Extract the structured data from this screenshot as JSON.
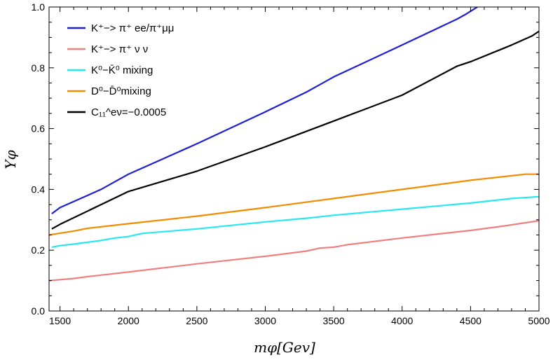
{
  "chart_data": {
    "type": "line",
    "xlabel": "mφ[Gev]",
    "ylabel": "Yφ",
    "xlim": [
      1420,
      5000
    ],
    "ylim": [
      0.0,
      1.0
    ],
    "x_ticks": [
      "1500",
      "2000",
      "2500",
      "3000",
      "3500",
      "4000",
      "4500",
      "5000"
    ],
    "y_ticks": [
      "0.0",
      "0.2",
      "0.4",
      "0.6",
      "0.8",
      "1.0"
    ],
    "grid": false,
    "legend_position": "top-left",
    "series": [
      {
        "name": "K⁺−> π⁺ ee/π⁺μμ",
        "color": "#1f1fd6",
        "x": [
          1440,
          1500,
          1600,
          1700,
          1800,
          1900,
          2000,
          2500,
          3000,
          3300,
          3400,
          3500,
          4000,
          4400,
          4460,
          4550
        ],
        "y": [
          0.32,
          0.34,
          0.36,
          0.38,
          0.4,
          0.425,
          0.45,
          0.55,
          0.655,
          0.72,
          0.745,
          0.77,
          0.875,
          0.96,
          0.975,
          1.0
        ]
      },
      {
        "name": "K⁺−> π⁺ ν ν",
        "color": "#f08080",
        "x": [
          1420,
          1500,
          1600,
          1700,
          1800,
          2000,
          2500,
          3000,
          3300,
          3400,
          3500,
          3600,
          4000,
          4500,
          4750,
          5000
        ],
        "y": [
          0.1,
          0.103,
          0.107,
          0.113,
          0.118,
          0.128,
          0.155,
          0.18,
          0.197,
          0.207,
          0.21,
          0.218,
          0.24,
          0.265,
          0.28,
          0.297
        ]
      },
      {
        "name": "K⁰−K̄⁰ mixing",
        "color": "#26e8f0",
        "x": [
          1440,
          1500,
          1600,
          1700,
          1800,
          1900,
          2000,
          2100,
          2500,
          3000,
          3300,
          3500,
          4000,
          4500,
          4800,
          5000
        ],
        "y": [
          0.21,
          0.215,
          0.22,
          0.226,
          0.232,
          0.24,
          0.245,
          0.255,
          0.27,
          0.293,
          0.305,
          0.315,
          0.335,
          0.355,
          0.37,
          0.376
        ]
      },
      {
        "name": "D⁰−D̄⁰mixing",
        "color": "#f28c00",
        "x": [
          1420,
          1500,
          1600,
          1700,
          2000,
          2500,
          3000,
          3500,
          4000,
          4500,
          4800,
          4900,
          5000
        ],
        "y": [
          0.25,
          0.256,
          0.263,
          0.272,
          0.287,
          0.312,
          0.34,
          0.37,
          0.4,
          0.43,
          0.445,
          0.45,
          0.45
        ]
      },
      {
        "name": "C₁₁^eν=−0.0005",
        "color": "#000000",
        "x": [
          1440,
          1500,
          2000,
          2500,
          3000,
          3500,
          4000,
          4400,
          4500,
          4800,
          4950,
          5000
        ],
        "y": [
          0.27,
          0.285,
          0.393,
          0.46,
          0.54,
          0.625,
          0.71,
          0.805,
          0.82,
          0.875,
          0.905,
          0.92
        ]
      }
    ]
  }
}
